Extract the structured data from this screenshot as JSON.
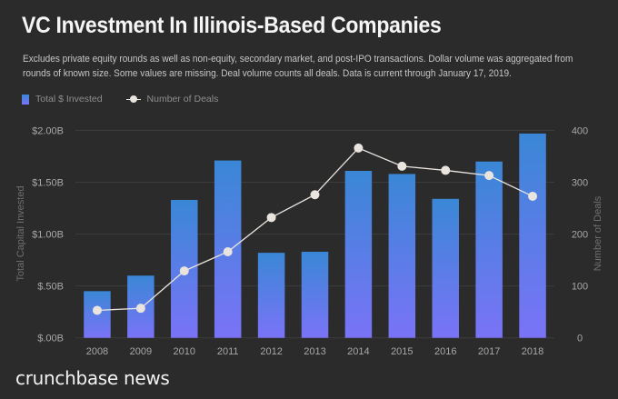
{
  "header": {
    "title": "VC Investment In Illinois-Based Companies",
    "subtitle": "Excludes private equity rounds as well as non-equity, secondary market, and post-IPO transactions. Dollar volume was aggregated from rounds of known size. Some values are missing. Deal volume counts all deals. Data is current through January 17, 2019."
  },
  "legend": {
    "items": [
      {
        "label": "Total $ Invested",
        "icon": "bar-swatch-icon"
      },
      {
        "label": "Number of Deals",
        "icon": "line-marker-icon"
      }
    ]
  },
  "brand": {
    "label": "crunchbase news"
  },
  "colors": {
    "background": "#2b2b2b",
    "bar_top": "#3a87d6",
    "bar_bottom": "#7a73f7",
    "line": "#e9e4de",
    "grid": "#3c3c3c"
  },
  "chart_data": {
    "type": "bar",
    "combo": "bar+line dual-axis",
    "title": "VC Investment In Illinois-Based Companies",
    "categories": [
      "2008",
      "2009",
      "2010",
      "2011",
      "2012",
      "2013",
      "2014",
      "2015",
      "2016",
      "2017",
      "2018"
    ],
    "series": [
      {
        "name": "Total $ Invested",
        "type": "bar",
        "axis": "left",
        "unit": "billion USD",
        "values": [
          0.45,
          0.6,
          1.33,
          1.71,
          0.82,
          0.83,
          1.61,
          1.58,
          1.34,
          1.7,
          1.97
        ]
      },
      {
        "name": "Number of Deals",
        "type": "line",
        "axis": "right",
        "values": [
          53,
          57,
          129,
          166,
          232,
          276,
          366,
          331,
          323,
          313,
          273
        ]
      }
    ],
    "xlabel": "",
    "ylabel": "Total Capital Invested",
    "y2label": "Number of Deals",
    "ylim": [
      0,
      2.0
    ],
    "y2lim": [
      0,
      400
    ],
    "yticks": [
      0,
      0.5,
      1.0,
      1.5,
      2.0
    ],
    "ytick_labels": [
      "$.00B",
      "$.50B",
      "$1.00B",
      "$1.50B",
      "$2.00B"
    ],
    "y2ticks": [
      0,
      100,
      200,
      300,
      400
    ],
    "y2tick_labels": [
      "0",
      "100",
      "200",
      "300",
      "400"
    ],
    "grid": true,
    "legend_position": "top-left"
  }
}
